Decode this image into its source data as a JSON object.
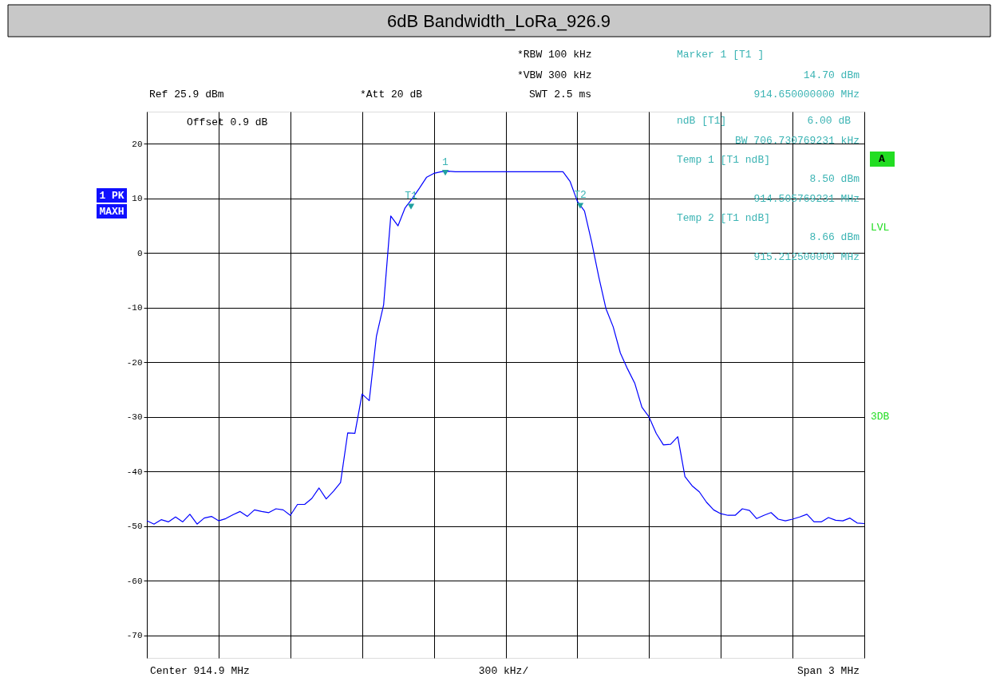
{
  "chart_data": {
    "type": "line",
    "title": "6dB Bandwidth_LoRa_926.9",
    "categories": [
      null,
      null,
      null,
      null,
      null,
      null,
      null,
      null,
      null,
      null,
      null,
      null,
      null,
      null,
      null,
      null,
      null,
      null,
      null,
      null,
      null,
      null,
      null,
      null,
      null,
      null,
      null,
      null,
      null,
      null,
      null,
      null,
      null,
      null,
      null,
      null,
      null,
      null,
      null,
      null,
      null,
      null,
      null,
      null,
      null,
      null,
      null,
      null,
      null,
      null,
      null,
      null,
      null,
      null,
      null,
      null,
      null,
      null,
      null,
      null,
      null,
      null,
      null,
      null,
      null,
      null,
      null,
      null,
      null,
      null,
      null,
      null,
      null,
      null,
      null,
      null,
      null,
      null,
      null,
      null,
      null,
      null,
      null,
      null,
      null,
      null,
      null,
      null,
      null,
      null,
      null,
      null,
      null,
      null,
      null,
      null,
      null,
      null,
      null,
      null,
      null
    ],
    "ylim": [
      -74.1,
      25.9
    ],
    "yticks": [
      -70,
      -60,
      -50,
      -40,
      -30,
      -20,
      -10,
      0,
      10,
      20
    ],
    "tick_labels": "y",
    "grid": true,
    "line_style": "solid",
    "series": [
      {
        "color": "#0000ff",
        "values": [
          -49.0,
          -49.6,
          -48.8,
          -49.2,
          -48.3,
          -49.2,
          -47.8,
          -49.6,
          -48.5,
          -48.2,
          -49.0,
          -48.6,
          -47.9,
          -47.3,
          -48.2,
          -47.0,
          -47.3,
          -47.5,
          -46.8,
          -47.0,
          -48.0,
          -46.0,
          -46.0,
          -44.9,
          -43.0,
          -45.0,
          -43.6,
          -42.0,
          -32.9,
          -33.0,
          -25.8,
          -27.0,
          -15.2,
          -9.5,
          6.8,
          5.0,
          8.3,
          10.0,
          11.9,
          13.9,
          14.6,
          14.9,
          15.0,
          14.9,
          14.9,
          14.9,
          14.9,
          14.9,
          14.9,
          14.9,
          14.9,
          14.9,
          14.9,
          14.9,
          14.9,
          14.9,
          14.9,
          14.9,
          14.9,
          13.1,
          9.5,
          7.7,
          2.0,
          -4.4,
          -10.2,
          -13.5,
          -18.3,
          -21.2,
          -23.8,
          -28.2,
          -30.0,
          -33.0,
          -35.1,
          -35.0,
          -33.6,
          -40.9,
          -42.6,
          -43.7,
          -45.6,
          -47.0,
          -47.7,
          -48.0,
          -48.0,
          -46.8,
          -47.1,
          -48.6,
          -48.0,
          -47.5,
          -48.7,
          -49.0,
          -48.7,
          -48.3,
          -47.8,
          -49.2,
          -49.2,
          -48.4,
          -48.9,
          -49.0,
          -48.5,
          -49.4,
          -49.5
        ]
      }
    ],
    "annotations": [
      "Ref 25.9 dBm",
      "*Att 20 dB",
      "*RBW 100 kHz",
      "*VBW 300 kHz",
      "SWT 2.5 ms",
      "Marker 1 [T1 ]",
      "14.70 dBm",
      "914.650000000 MHz",
      "Offset 0.9 dB",
      "ndB [T1]",
      "6.00 dB",
      "BW 706.730769231 kHz",
      "Temp 1 [T1 ndB]",
      "8.50 dBm",
      "914.505769231 MHz",
      "Temp 2 [T1 ndB]",
      "8.66 dBm",
      "915.212500000 MHz",
      "1 PK",
      "MAXH",
      "A",
      "LVL",
      "3DB",
      "Center 914.9 MHz",
      "300 kHz/",
      "Span 3 MHz",
      {
        "text": "1",
        "y": 14.7
      },
      {
        "text": "T1",
        "y": 8.5
      },
      {
        "text": "T2",
        "y": 8.66
      }
    ]
  }
}
